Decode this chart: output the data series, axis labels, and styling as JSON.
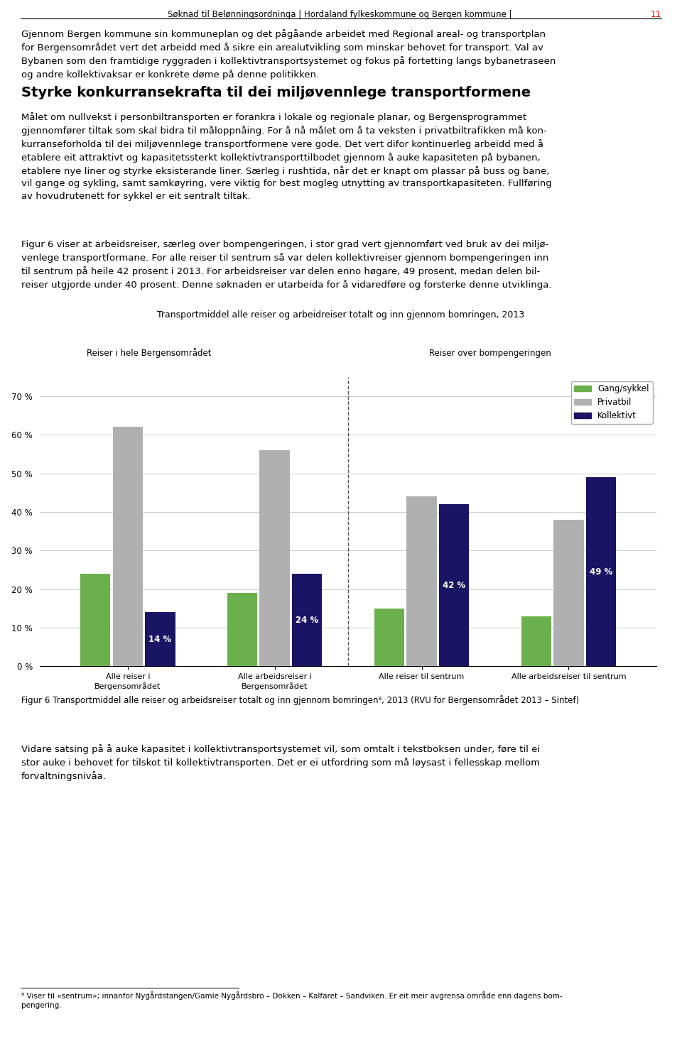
{
  "title": "Transportmiddel alle reiser og arbeidreiser totalt og inn gjennom bomringen, 2013",
  "header_black": "Søknad til Belønningsordninga | Hordaland fylkeskommune og Bergen kommune | ",
  "header_red": "11",
  "section_label_left": "Reiser i hele Bergensområdet",
  "section_label_right": "Reiser over bompengeringen",
  "groups": [
    "Alle reiser i\nBergensområdet",
    "Alle arbeidsreiser i\nBergensområdet",
    "Alle reiser til sentrum",
    "Alle arbeidsreiser til sentrum"
  ],
  "categories": [
    "Gang/sykkel",
    "Privatbil",
    "Kollektivt"
  ],
  "colors": [
    "#6ab04c",
    "#b0b0b0",
    "#1a1464"
  ],
  "values": [
    [
      24,
      62,
      14
    ],
    [
      19,
      56,
      24
    ],
    [
      15,
      44,
      42
    ],
    [
      13,
      38,
      49
    ]
  ],
  "koll_labels": [
    "14 %",
    "24 %",
    "42 %",
    "49 %"
  ],
  "ylim": [
    0,
    75
  ],
  "yticks": [
    0,
    10,
    20,
    30,
    40,
    50,
    60,
    70
  ],
  "ytick_labels": [
    "0 %",
    "10 %",
    "20 %",
    "30 %",
    "40 %",
    "50 %",
    "60 %",
    "70 %"
  ],
  "body1": "Gjennom Bergen kommune sin kommuneplan og det pågåande arbeidet med Regional areal- og transportplan\nfor Bergensområdet vert det arbeidd med å sikre ein arealutvikling som minskar behovet for transport. Val av\nBybanen som den framtidige ryggraden i kollektivtransportsystemet og fokus på fortetting langs bybanetraseen\nog andre kollektivaksar er konkrete døme på denne politikken.",
  "heading": "Styrke konkurransekrafta til dei miljøvennlege transportformene",
  "body2": "Målet om nullvekst i personbiltransporten er forankra i lokale og regionale planar, og Bergensprogrammet\ngjennomfører tiltak som skal bidra til måloppnåing. For å nå målet om å ta veksten i privatbiltrafikken må kon-\nkurranseforholda til dei miljøvennlege transportformene vere gode. Det vert difor kontinuerleg arbeidd med å\netablere eit attraktivt og kapasitetssterkt kollektivtransporttilbodet gjennom å auke kapasiteten på bybanen,\netablere nye liner og styrke eksisterande liner. Særleg i rushtida, når det er knapt om plassar på buss og bane,\nvil gange og sykling, samt samkøyring, vere viktig for best mogleg utnytting av transportkapasiteten. Fullføring\nav hovudrutenett for sykkel er eit sentralt tiltak.",
  "body3": "Figur 6 viser at arbeidsreiser, særleg over bompengeringen, i stor grad vert gjennomført ved bruk av dei miljø-\nvenlege transportformane. For alle reiser til sentrum så var delen kollektivreiser gjennom bompengeringen inn\ntil sentrum på heile 42 prosent i 2013. For arbeidsreiser var delen enno høgare, 49 prosent, medan delen bil-\nreiser utgjorde under 40 prosent. Denne søknaden er utarbeida for å vidaredføre og forsterke denne utviklinga.",
  "caption": "Figur 6 Transportmiddel alle reiser og arbeidsreiser totalt og inn gjennom bomringen⁸, 2013 (RVU for Bergensområdet 2013 – Sintef)",
  "body4": "Vidare satsing på å auke kapasitet i kollektivtransportsystemet vil, som omtalt i tekstboksen under, føre til ei\nstor auke i behovet for tilskot til kollektivtransporten. Det er ei utfordring som må løysast i fellesskap mellom\nforvaltningsnivåa.",
  "footnote": "⁸ Viser til «sentrum»; innanfor Nygårdstangen/Gamle Nygårdsbro – Dokken – Kalfaret – Sandviken. Er eit meir avgrensa område enn dagens bom-\npengering.",
  "background_color": "#ffffff"
}
